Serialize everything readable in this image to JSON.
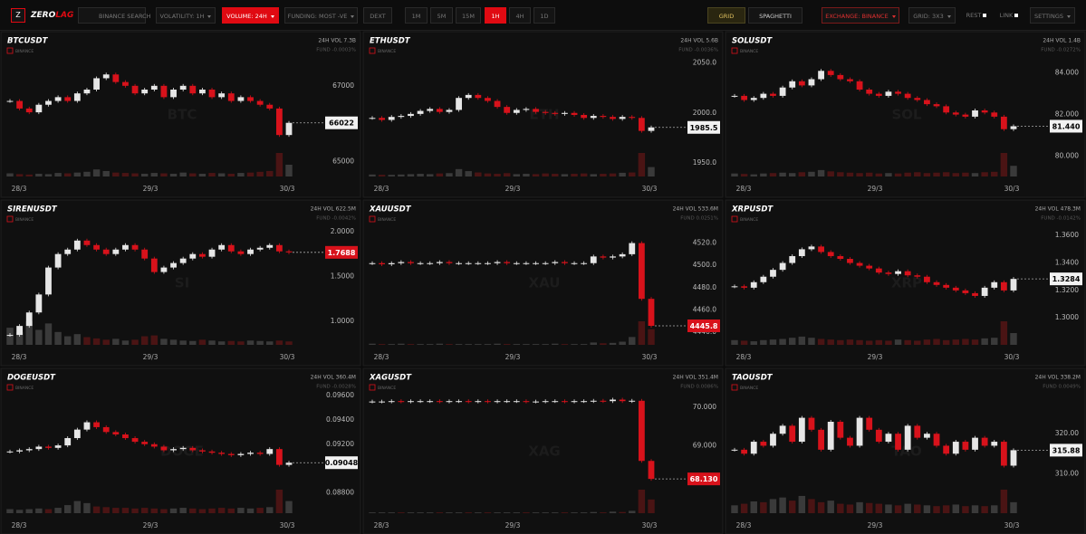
{
  "toolbar": {
    "logo": "Z",
    "brand_a": "ZERO",
    "brand_b": "LAG",
    "search": "BINANCE SEARCH",
    "volatility": "VOLATILITY: 1H",
    "volume": "VOLUME: 24H",
    "funding": "FUNDING: MOST -VE",
    "dext": "DEXT",
    "timeframes": [
      "1M",
      "5M",
      "15M",
      "1H",
      "4H",
      "1D"
    ],
    "grid": "GRID",
    "spaghetti": "SPAGHETTI",
    "exchange": "EXCHANGE: BINANCE",
    "grid_size": "GRID: 3X3",
    "rest": "REST",
    "link": "LINK",
    "settings": "SETTINGS"
  },
  "chart_data": [
    {
      "type": "candlestick",
      "title": "BTCUSDT",
      "exchange": "BINANCE",
      "volume_label": "24H VOL 7.3B",
      "funding_label": "FUND -0.0003%",
      "watermark": "BTC",
      "x_labels": [
        "28/3",
        "29/3",
        "30/3"
      ],
      "ylim": [
        64700,
        68000
      ],
      "yticks": [
        67000,
        65000
      ],
      "closes": [
        66600,
        66400,
        66300,
        66500,
        66600,
        66700,
        66600,
        66800,
        66900,
        67200,
        67300,
        67100,
        67000,
        66800,
        66900,
        67000,
        66700,
        66900,
        67000,
        66800,
        66900,
        66700,
        66800,
        66600,
        66700,
        66600,
        66500,
        66400,
        65700,
        66022
      ],
      "volumes": [
        8,
        6,
        5,
        7,
        6,
        9,
        8,
        10,
        12,
        18,
        14,
        10,
        9,
        8,
        7,
        9,
        8,
        7,
        10,
        8,
        7,
        9,
        8,
        7,
        9,
        10,
        12,
        14,
        60,
        30
      ]
    },
    {
      "type": "candlestick",
      "title": "ETHUSDT",
      "exchange": "BINANCE",
      "volume_label": "24H VOL 5.6B",
      "funding_label": "FUND -0.0036%",
      "watermark": "ETH",
      "x_labels": [
        "28/3",
        "29/3",
        "30/3"
      ],
      "ylim": [
        1940,
        2065
      ],
      "yticks": [
        {
          "value": 2050,
          "label": "2050.0"
        },
        {
          "value": 2000,
          "label": "2000.0"
        },
        {
          "value": 1950,
          "label": "1950.0"
        }
      ],
      "closes": [
        1995,
        1993,
        1996,
        1997,
        1999,
        2002,
        2004,
        2001,
        2003,
        2015,
        2018,
        2015,
        2012,
        2006,
        2000,
        2003,
        2004,
        2001,
        2000,
        1999,
        2000,
        1998,
        1995,
        1997,
        1996,
        1994,
        1996,
        1995,
        1982,
        1985.5
      ],
      "volumes": [
        6,
        5,
        5,
        6,
        7,
        8,
        7,
        9,
        10,
        22,
        16,
        12,
        9,
        8,
        10,
        7,
        8,
        7,
        9,
        8,
        7,
        8,
        9,
        7,
        8,
        9,
        11,
        12,
        70,
        28
      ]
    },
    {
      "type": "candlestick",
      "title": "SOLUSDT",
      "exchange": "BINANCE",
      "volume_label": "24H VOL 1.4B",
      "funding_label": "FUND -0.0272%",
      "watermark": "SOL",
      "x_labels": [
        "28/3",
        "29/3",
        "30/3"
      ],
      "ylim": [
        79.2,
        85.2
      ],
      "yticks": [
        {
          "value": 84,
          "label": "84.000"
        },
        {
          "value": 82,
          "label": "82.000"
        },
        {
          "value": 80,
          "label": "80.000"
        }
      ],
      "closes": [
        82.9,
        82.7,
        82.8,
        83,
        82.9,
        83.3,
        83.6,
        83.4,
        83.7,
        84.1,
        83.9,
        83.7,
        83.6,
        83.2,
        83,
        82.9,
        83.1,
        83,
        82.8,
        82.7,
        82.5,
        82.4,
        82.1,
        82,
        81.9,
        82.2,
        82.1,
        81.9,
        81.3,
        81.44
      ],
      "last_label": "81.440",
      "volumes": [
        7,
        6,
        5,
        7,
        8,
        9,
        8,
        10,
        11,
        15,
        12,
        10,
        9,
        8,
        9,
        7,
        8,
        7,
        9,
        10,
        8,
        9,
        10,
        8,
        9,
        8,
        10,
        11,
        55,
        25
      ]
    },
    {
      "type": "candlestick",
      "title": "SIRENUSDT",
      "exchange": "BINANCE",
      "volume_label": "24H VOL 622.5M",
      "funding_label": "FUND -0.0042%",
      "watermark": "SI",
      "x_labels": [
        "28/3",
        "29/3",
        "30/3"
      ],
      "ylim": [
        0.78,
        2.17
      ],
      "yticks": [
        {
          "value": 2,
          "label": "2.0000"
        },
        {
          "value": 1.5,
          "label": "1.5000"
        },
        {
          "value": 1,
          "label": "1.0000"
        }
      ],
      "closes": [
        0.85,
        0.95,
        1.1,
        1.3,
        1.6,
        1.75,
        1.8,
        1.9,
        1.85,
        1.8,
        1.75,
        1.8,
        1.85,
        1.8,
        1.7,
        1.55,
        1.6,
        1.65,
        1.7,
        1.75,
        1.72,
        1.8,
        1.85,
        1.78,
        1.75,
        1.8,
        1.82,
        1.85,
        1.78,
        1.7688
      ],
      "volumes": [
        40,
        30,
        55,
        35,
        50,
        30,
        20,
        25,
        18,
        15,
        12,
        14,
        10,
        12,
        20,
        22,
        14,
        12,
        10,
        9,
        12,
        10,
        8,
        9,
        8,
        10,
        9,
        8,
        10,
        8
      ]
    },
    {
      "type": "candlestick",
      "title": "XAUUSDT",
      "exchange": "BINANCE",
      "volume_label": "24H VOL 533.6M",
      "funding_label": "FUND 0.0251%",
      "watermark": "XAU",
      "x_labels": [
        "28/3",
        "29/3",
        "30/3"
      ],
      "ylim": [
        4432,
        4544
      ],
      "yticks": [
        {
          "value": 4520,
          "label": "4520.0"
        },
        {
          "value": 4500,
          "label": "4500.0"
        },
        {
          "value": 4480,
          "label": "4480.0"
        },
        {
          "value": 4460,
          "label": "4460.0"
        },
        {
          "value": 4440,
          "label": "4440.0"
        }
      ],
      "closes": [
        4502,
        4501,
        4502,
        4503,
        4502,
        4502,
        4502,
        4503,
        4502,
        4502,
        4502,
        4502,
        4502,
        4503,
        4502,
        4502,
        4502,
        4502,
        4502,
        4503,
        4502,
        4502,
        4502,
        4508,
        4507,
        4508,
        4510,
        4520,
        4470,
        4445.8
      ],
      "volumes": [
        3,
        2,
        2,
        3,
        2,
        2,
        2,
        3,
        2,
        2,
        2,
        2,
        2,
        3,
        2,
        2,
        2,
        2,
        2,
        3,
        2,
        2,
        2,
        6,
        4,
        5,
        8,
        20,
        60,
        40
      ]
    },
    {
      "type": "candlestick",
      "title": "XRPUSDT",
      "exchange": "BINANCE",
      "volume_label": "24H VOL 478.3M",
      "funding_label": "FUND -0.0142%",
      "watermark": "XRP",
      "x_labels": [
        "28/3",
        "29/3",
        "30/3"
      ],
      "ylim": [
        1.283,
        1.374
      ],
      "yticks": [
        {
          "value": 1.36,
          "label": "1.3600"
        },
        {
          "value": 1.34,
          "label": "1.3400"
        },
        {
          "value": 1.32,
          "label": "1.3200"
        },
        {
          "value": 1.3,
          "label": "1.3000"
        }
      ],
      "closes": [
        1.323,
        1.322,
        1.326,
        1.33,
        1.335,
        1.34,
        1.345,
        1.35,
        1.352,
        1.348,
        1.345,
        1.343,
        1.34,
        1.338,
        1.336,
        1.333,
        1.332,
        1.334,
        1.331,
        1.33,
        1.326,
        1.324,
        1.322,
        1.32,
        1.318,
        1.316,
        1.322,
        1.326,
        1.32,
        1.3284
      ],
      "volumes": [
        8,
        7,
        6,
        8,
        9,
        10,
        12,
        14,
        12,
        10,
        9,
        8,
        9,
        8,
        7,
        8,
        7,
        9,
        8,
        7,
        9,
        10,
        8,
        9,
        10,
        9,
        11,
        12,
        40,
        20
      ]
    },
    {
      "type": "candlestick",
      "title": "DOGEUSDT",
      "exchange": "BINANCE",
      "volume_label": "24H VOL 360.4M",
      "funding_label": "FUND -0.0028%",
      "watermark": "DOGE",
      "x_labels": [
        "28/3",
        "29/3",
        "30/3"
      ],
      "ylim": [
        0.08663,
        0.09689
      ],
      "yticks": [
        {
          "value": 0.096,
          "label": "0.09600"
        },
        {
          "value": 0.094,
          "label": "0.09400"
        },
        {
          "value": 0.092,
          "label": "0.09200"
        },
        {
          "value": 0.088,
          "label": "0.08800"
        }
      ],
      "closes": [
        0.0914,
        0.0915,
        0.0916,
        0.0918,
        0.0917,
        0.0919,
        0.0925,
        0.0932,
        0.0938,
        0.0934,
        0.093,
        0.0928,
        0.0925,
        0.0922,
        0.092,
        0.0918,
        0.0915,
        0.0916,
        0.0917,
        0.0915,
        0.0914,
        0.0913,
        0.0912,
        0.0911,
        0.0912,
        0.0913,
        0.0912,
        0.0916,
        0.0903,
        0.09048
      ],
      "volumes": [
        6,
        5,
        6,
        7,
        6,
        8,
        12,
        18,
        15,
        10,
        9,
        8,
        8,
        7,
        8,
        7,
        6,
        7,
        8,
        7,
        6,
        7,
        8,
        7,
        8,
        7,
        8,
        9,
        35,
        18
      ]
    },
    {
      "type": "candlestick",
      "title": "XAGUSDT",
      "exchange": "BINANCE",
      "volume_label": "24H VOL 351.4M",
      "funding_label": "FUND 0.0086%",
      "watermark": "XAG",
      "x_labels": [
        "28/3",
        "29/3",
        "30/3"
      ],
      "ylim": [
        67.33,
        70.59
      ],
      "yticks": [
        {
          "value": 70,
          "label": "70.000"
        },
        {
          "value": 69,
          "label": "69.000"
        }
      ],
      "closes": [
        70.15,
        70.15,
        70.16,
        70.15,
        70.16,
        70.16,
        70.16,
        70.15,
        70.16,
        70.16,
        70.15,
        70.16,
        70.15,
        70.16,
        70.16,
        70.16,
        70.15,
        70.15,
        70.16,
        70.16,
        70.15,
        70.16,
        70.16,
        70.17,
        70.16,
        70.2,
        70.16,
        70.17,
        68.6,
        68.13
      ],
      "last_label": "68.130",
      "volumes": [
        2,
        2,
        2,
        2,
        2,
        2,
        2,
        2,
        2,
        2,
        2,
        2,
        2,
        2,
        2,
        2,
        2,
        2,
        2,
        2,
        2,
        2,
        2,
        3,
        2,
        4,
        3,
        6,
        60,
        35
      ]
    },
    {
      "type": "candlestick",
      "title": "TAOUSDT",
      "exchange": "BINANCE",
      "volume_label": "24H VOL 338.2M",
      "funding_label": "FUND 0.0049%",
      "watermark": "TAO",
      "x_labels": [
        "28/3",
        "29/3",
        "30/3"
      ],
      "ylim": [
        301,
        332.3
      ],
      "yticks": [
        {
          "value": 320,
          "label": "320.00"
        },
        {
          "value": 310,
          "label": "310.00"
        }
      ],
      "closes": [
        316,
        315,
        318,
        317,
        320,
        322,
        318,
        324,
        321,
        316,
        323,
        319,
        317,
        324,
        321,
        318,
        320,
        316,
        322,
        319,
        320,
        317,
        315,
        318,
        316,
        319,
        317,
        318,
        312,
        315.88
      ],
      "volumes": [
        10,
        12,
        15,
        14,
        18,
        20,
        16,
        22,
        18,
        14,
        16,
        12,
        11,
        14,
        13,
        12,
        11,
        10,
        12,
        11,
        10,
        9,
        10,
        11,
        9,
        10,
        9,
        10,
        30,
        14
      ]
    }
  ]
}
